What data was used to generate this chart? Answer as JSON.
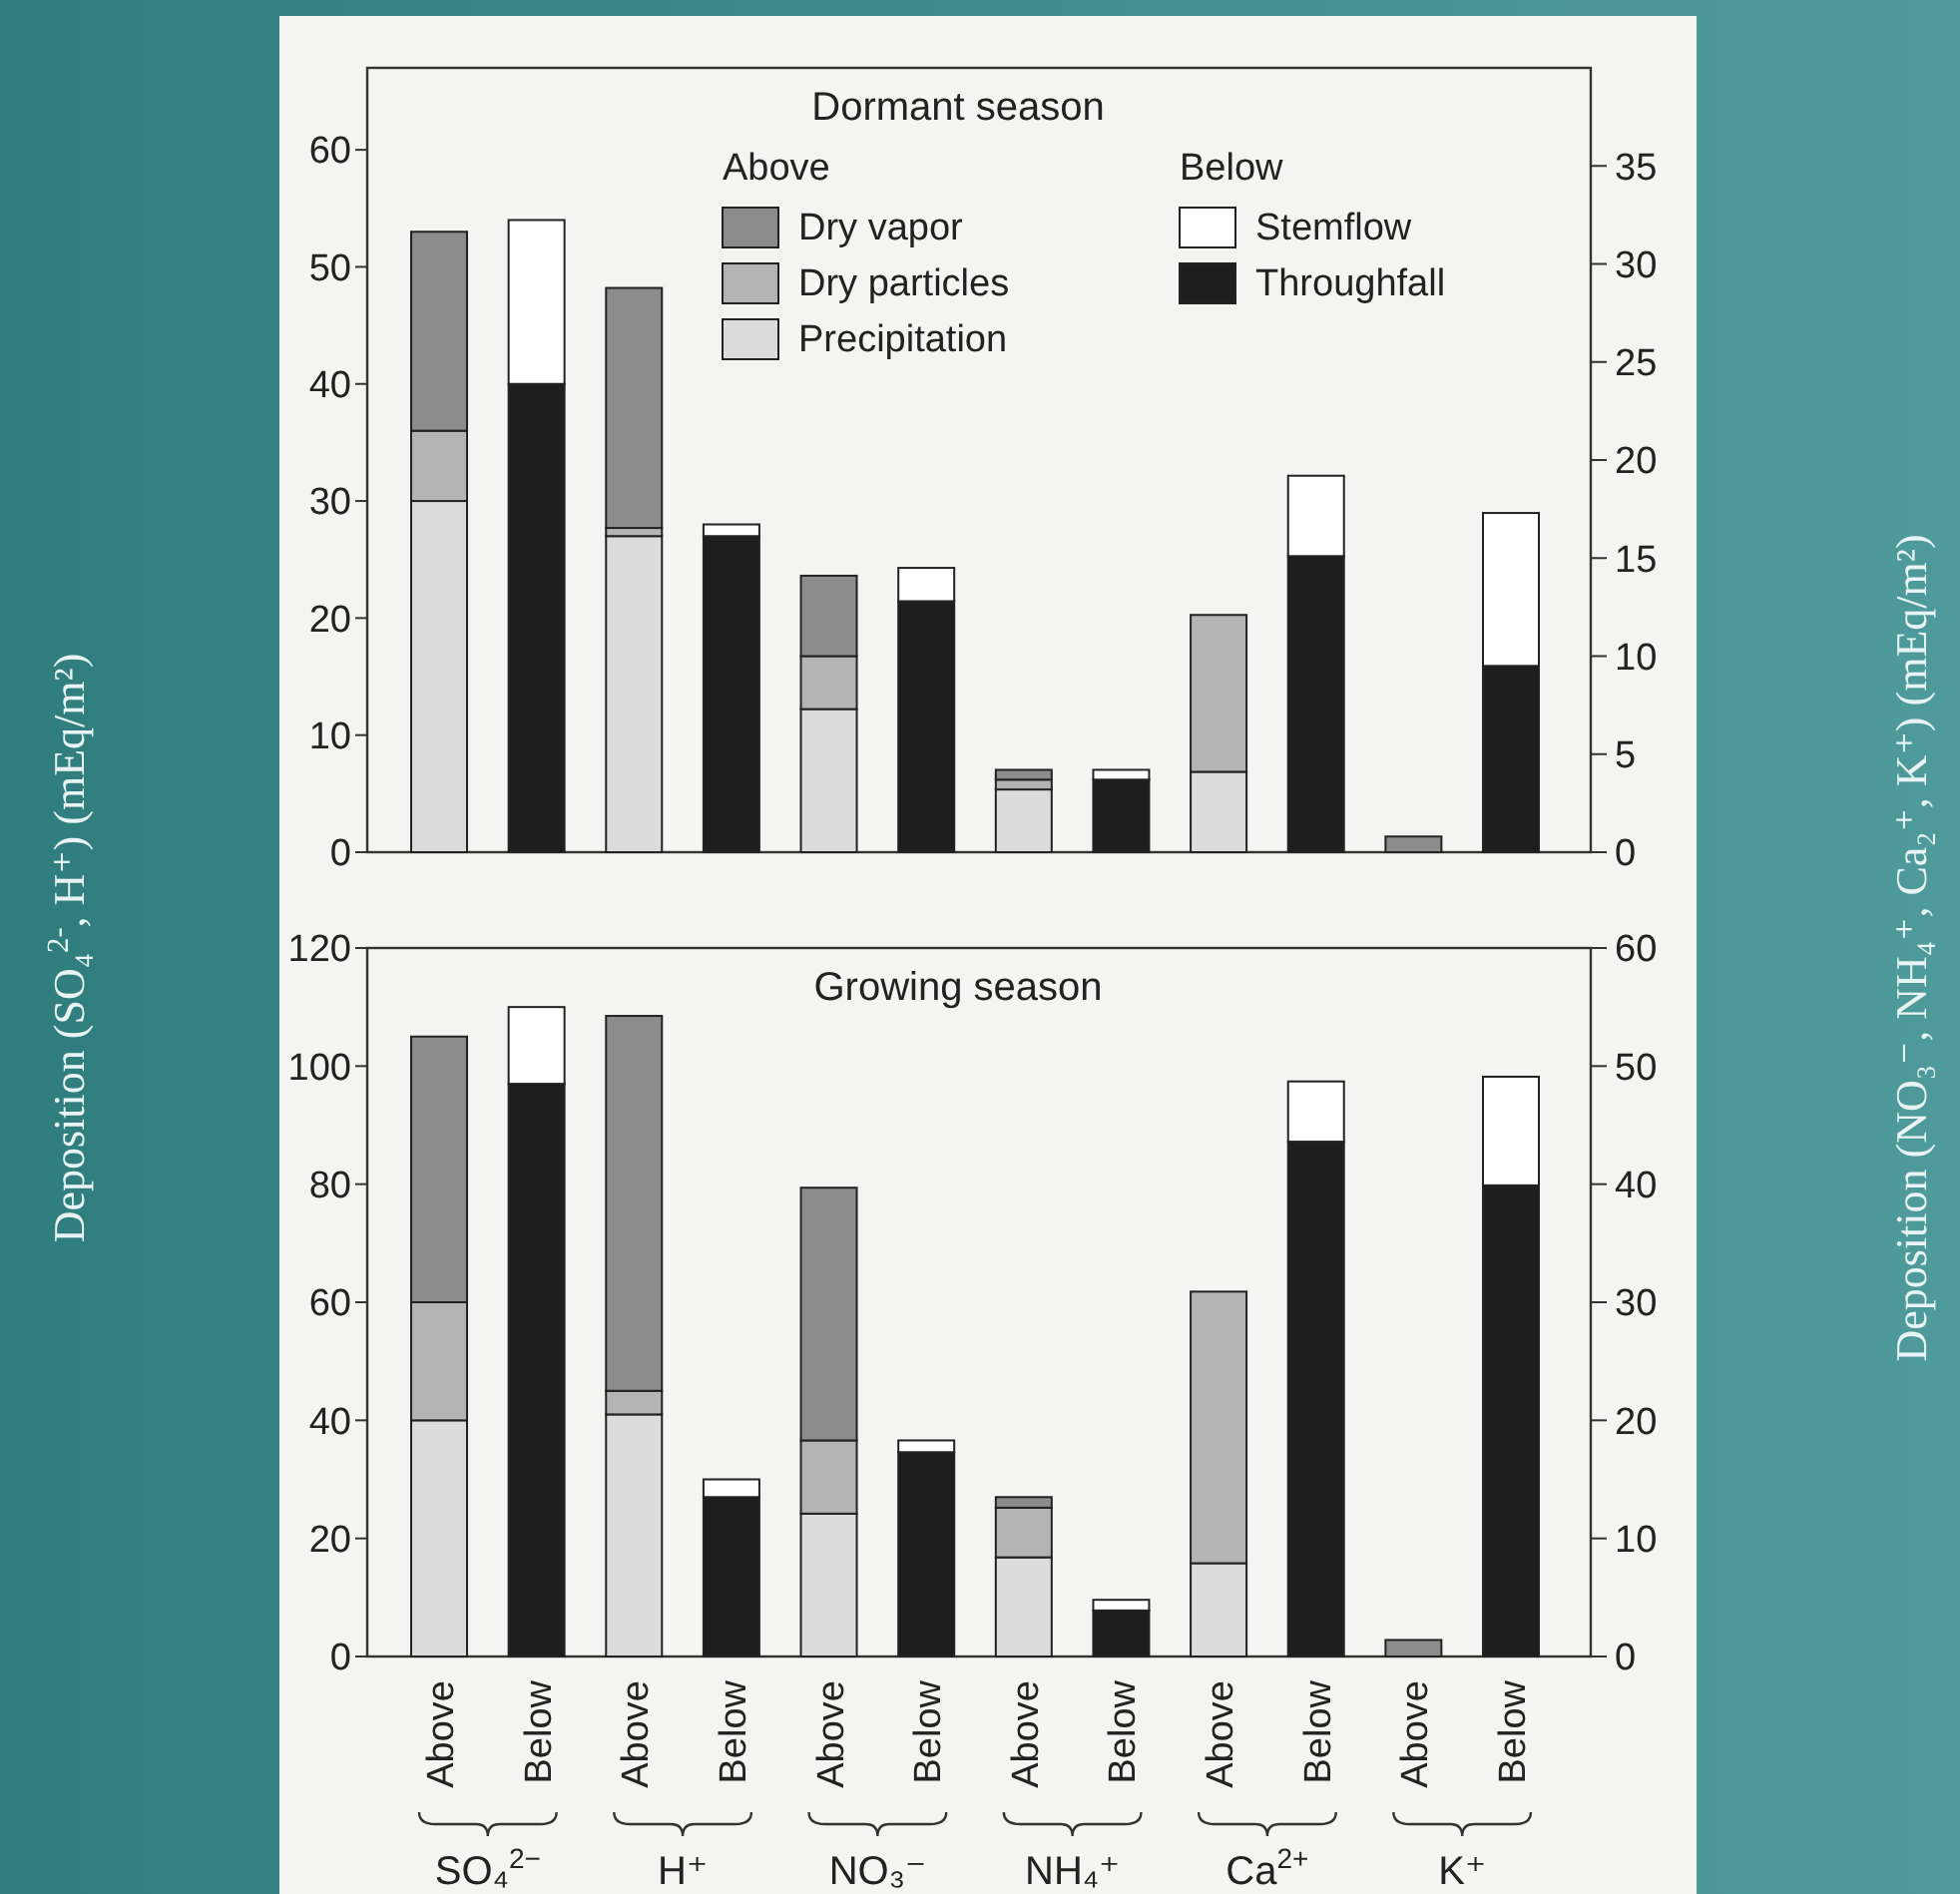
{
  "chart_data": [
    {
      "type": "bar",
      "title": "Dormant season",
      "stacked": true,
      "legend": "top",
      "tick_labels": "y",
      "ylabel": "Deposition (SO₄$^{2-}$, H⁺) (mEq/m²)",
      "y2label": "Deposition (NO₃⁻, NH₄⁺, Ca₂⁺, K⁺) (mEq/m²)",
      "annotations": [
        "Above",
        "Below"
      ],
      "categories": [
        null,
        null,
        null,
        null,
        null,
        null,
        null,
        null,
        null,
        null,
        null,
        null
      ],
      "ylim": [
        0,
        67
      ],
      "yticks": [
        0,
        10,
        20,
        30,
        40,
        50,
        60
      ],
      "y2lim": [
        0,
        40
      ],
      "y2ticks": [
        0,
        5,
        10,
        15,
        20,
        25,
        30,
        35
      ],
      "series": [
        {
          "name": "Precipitation",
          "color": "#dcdcdc",
          "values": [
            30,
            null,
            27,
            null,
            null,
            null,
            null,
            null,
            null,
            null,
            null,
            null
          ]
        },
        {
          "name": "Dry particles",
          "color": "#b4b4b4",
          "values": [
            6,
            null,
            0.7,
            null,
            null,
            null,
            null,
            null,
            null,
            null,
            null,
            null
          ]
        },
        {
          "name": "Dry vapor",
          "color": "#8c8c8c",
          "values": [
            17,
            null,
            20.5,
            null,
            null,
            null,
            null,
            null,
            null,
            null,
            null,
            null
          ]
        },
        {
          "name": "Throughfall",
          "color": "#1e1e1e",
          "values": [
            null,
            40,
            null,
            27,
            null,
            null,
            null,
            null,
            null,
            null,
            null,
            null
          ]
        },
        {
          "name": "Stemflow",
          "color": "#ffffff",
          "values": [
            null,
            14,
            null,
            1,
            null,
            null,
            null,
            null,
            null,
            null,
            null,
            null
          ]
        },
        {
          "color": "#dcdcdc",
          "axis": "y2",
          "values": [
            null,
            null,
            null,
            null,
            7.3,
            null,
            3.2,
            null,
            4.1,
            null,
            null,
            null
          ]
        },
        {
          "color": "#b4b4b4",
          "axis": "y2",
          "values": [
            null,
            null,
            null,
            null,
            2.7,
            null,
            0.5,
            null,
            8.0,
            null,
            null,
            null
          ]
        },
        {
          "color": "#8c8c8c",
          "axis": "y2",
          "values": [
            null,
            null,
            null,
            null,
            4.1,
            null,
            0.5,
            null,
            null,
            null,
            0.8,
            null
          ]
        },
        {
          "color": "#1e1e1e",
          "axis": "y2",
          "values": [
            null,
            null,
            null,
            null,
            null,
            12.8,
            null,
            3.7,
            null,
            15.1,
            null,
            9.5
          ]
        },
        {
          "color": "#ffffff",
          "axis": "y2",
          "values": [
            null,
            null,
            null,
            null,
            null,
            1.7,
            null,
            0.5,
            null,
            4.1,
            null,
            7.8
          ]
        }
      ]
    },
    {
      "type": "bar",
      "title": "Growing season",
      "stacked": true,
      "annotations": [
        "SO₄$^{2−}$",
        "H⁺",
        "NO₃⁻",
        "NH₄⁺",
        "Ca$^{2+}$",
        "K⁺"
      ],
      "categories": [
        "Above",
        "Below",
        "Above",
        "Below",
        "Above",
        "Below",
        "Above",
        "Below",
        "Above",
        "Below",
        "Above",
        "Below"
      ],
      "ylim": [
        0,
        120
      ],
      "yticks": [
        0,
        20,
        40,
        60,
        80,
        100,
        120
      ],
      "y2lim": [
        0,
        60
      ],
      "y2ticks": [
        0,
        10,
        20,
        30,
        40,
        50,
        60
      ],
      "series": [
        {
          "color": "#dcdcdc",
          "values": [
            40,
            null,
            41,
            null,
            null,
            null,
            null,
            null,
            null,
            null,
            null,
            null
          ]
        },
        {
          "color": "#b4b4b4",
          "values": [
            20,
            null,
            4,
            null,
            null,
            null,
            null,
            null,
            null,
            null,
            null,
            null
          ]
        },
        {
          "color": "#8c8c8c",
          "values": [
            45,
            null,
            63.5,
            null,
            null,
            null,
            null,
            null,
            null,
            null,
            null,
            null
          ]
        },
        {
          "color": "#1e1e1e",
          "values": [
            null,
            97,
            null,
            27,
            null,
            null,
            null,
            null,
            null,
            null,
            null,
            null
          ]
        },
        {
          "color": "#ffffff",
          "values": [
            null,
            13,
            null,
            3,
            null,
            null,
            null,
            null,
            null,
            null,
            null,
            null
          ]
        },
        {
          "color": "#dcdcdc",
          "axis": "y2",
          "values": [
            null,
            null,
            null,
            null,
            12.1,
            null,
            8.4,
            null,
            7.9,
            null,
            null,
            null
          ]
        },
        {
          "color": "#b4b4b4",
          "axis": "y2",
          "values": [
            null,
            null,
            null,
            null,
            6.2,
            null,
            4.2,
            null,
            23.0,
            null,
            null,
            null
          ]
        },
        {
          "color": "#8c8c8c",
          "axis": "y2",
          "values": [
            null,
            null,
            null,
            null,
            21.4,
            null,
            0.9,
            null,
            null,
            null,
            1.4,
            null
          ]
        },
        {
          "color": "#1e1e1e",
          "axis": "y2",
          "values": [
            null,
            null,
            null,
            null,
            null,
            17.3,
            null,
            3.9,
            null,
            43.6,
            null,
            39.9
          ]
        },
        {
          "color": "#ffffff",
          "axis": "y2",
          "values": [
            null,
            null,
            null,
            null,
            null,
            1.0,
            null,
            0.9,
            null,
            5.1,
            null,
            9.2
          ]
        }
      ]
    }
  ]
}
